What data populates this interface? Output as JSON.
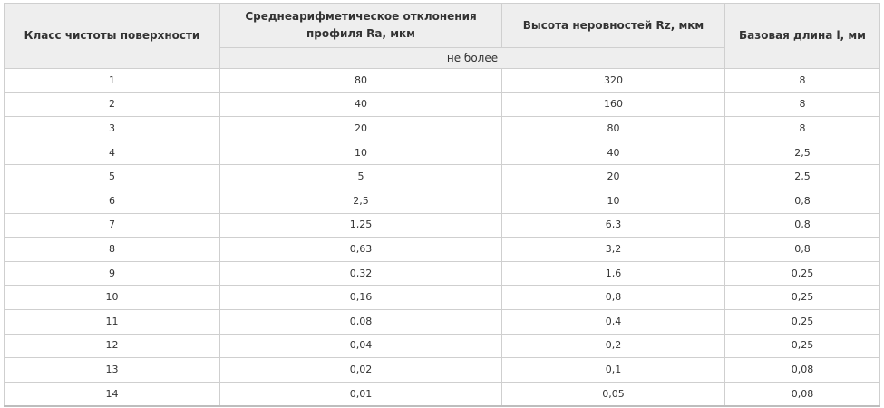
{
  "table": {
    "headers": {
      "class": "Класс чистоты поверхности",
      "ra": "Среднеарифметическое отклонения профиля Ra, мкм",
      "rz": "Высота неровностей Rz, мкм",
      "base": "Базовая длина l, мм",
      "sub_note": "не более"
    },
    "rows": [
      [
        "1",
        "80",
        "320",
        "8"
      ],
      [
        "2",
        "40",
        "160",
        "8"
      ],
      [
        "3",
        "20",
        "80",
        "8"
      ],
      [
        "4",
        "10",
        "40",
        "2,5"
      ],
      [
        "5",
        "5",
        "20",
        "2,5"
      ],
      [
        "6",
        "2,5",
        "10",
        "0,8"
      ],
      [
        "7",
        "1,25",
        "6,3",
        "0,8"
      ],
      [
        "8",
        "0,63",
        "3,2",
        "0,8"
      ],
      [
        "9",
        "0,32",
        "1,6",
        "0,25"
      ],
      [
        "10",
        "0,16",
        "0,8",
        "0,25"
      ],
      [
        "11",
        "0,08",
        "0,4",
        "0,25"
      ],
      [
        "12",
        "0,04",
        "0,2",
        "0,25"
      ],
      [
        "13",
        "0,02",
        "0,1",
        "0,08"
      ],
      [
        "14",
        "0,01",
        "0,05",
        "0,08"
      ]
    ]
  }
}
